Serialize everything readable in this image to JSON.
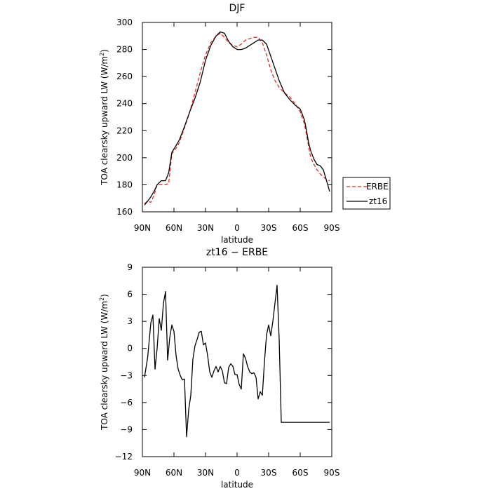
{
  "chart_data": [
    {
      "type": "line",
      "title": "DJF",
      "xlabel": "latitude",
      "ylabel": "TOA clearsky upward LW (W/m²)",
      "xlim": [
        90,
        -90
      ],
      "ylim": [
        160,
        300
      ],
      "x_tick_values": [
        90,
        60,
        30,
        0,
        -30,
        -60,
        -90
      ],
      "x_tick_labels": [
        "90N",
        "60N",
        "30N",
        "0",
        "30S",
        "60S",
        "90S"
      ],
      "y_tick_values": [
        160,
        180,
        200,
        220,
        240,
        260,
        280,
        300
      ],
      "y_tick_labels": [
        "160",
        "180",
        "200",
        "220",
        "240",
        "260",
        "280",
        "300"
      ],
      "legend_placement": "right",
      "series": [
        {
          "name": "ERBE",
          "color": "#e8281e",
          "dashed": true,
          "x": [
            88,
            85,
            82,
            79,
            76,
            72,
            68,
            65,
            62,
            58,
            55,
            50,
            45,
            40,
            35,
            30,
            25,
            20,
            16,
            12,
            8,
            4,
            0,
            -4,
            -8,
            -12,
            -16,
            -20,
            -24,
            -28,
            -32,
            -36,
            -40,
            -45,
            -50,
            -55,
            -60,
            -64,
            -66,
            -68,
            -70,
            -73,
            -76,
            -79,
            -82,
            -85,
            -88
          ],
          "y": [
            166,
            168,
            167,
            172,
            180,
            180,
            180,
            181,
            203,
            207,
            211,
            222,
            234,
            248,
            263,
            276,
            285,
            290,
            292,
            289,
            285,
            283,
            282,
            284,
            287,
            288,
            289,
            289,
            285,
            276,
            265,
            257,
            252,
            248,
            245,
            240,
            234,
            225,
            217,
            208,
            200,
            195,
            191,
            188,
            186,
            184,
            183
          ]
        },
        {
          "name": "zt16",
          "color": "#000000",
          "dashed": false,
          "x": [
            88,
            85,
            82,
            79,
            76,
            72,
            68,
            65,
            62,
            58,
            55,
            50,
            45,
            40,
            35,
            30,
            25,
            20,
            16,
            12,
            8,
            4,
            0,
            -4,
            -8,
            -12,
            -16,
            -20,
            -24,
            -28,
            -32,
            -36,
            -40,
            -45,
            -50,
            -55,
            -60,
            -64,
            -66,
            -68,
            -70,
            -73,
            -76,
            -79,
            -82,
            -85,
            -88
          ],
          "y": [
            165,
            168,
            171,
            175,
            180,
            183,
            183,
            189,
            204,
            209,
            213,
            223,
            234,
            244,
            256,
            272,
            283,
            290,
            293,
            292,
            286,
            282,
            280,
            280,
            281,
            283,
            285,
            287,
            287,
            284,
            275,
            266,
            257,
            248,
            243,
            239,
            236,
            228,
            220,
            211,
            205,
            199,
            195,
            194,
            191,
            183,
            175
          ]
        }
      ]
    },
    {
      "type": "line",
      "title": "zt16 − ERBE",
      "xlabel": "latitude",
      "ylabel": "TOA clearsky upward LW (W/m²)",
      "xlim": [
        90,
        -90
      ],
      "ylim": [
        -12,
        9
      ],
      "x_tick_values": [
        90,
        60,
        30,
        0,
        -30,
        -60,
        -90
      ],
      "x_tick_labels": [
        "90N",
        "60N",
        "30N",
        "0",
        "30S",
        "60S",
        "90S"
      ],
      "y_tick_values": [
        -12,
        -9,
        -6,
        -3,
        0,
        3,
        6,
        9
      ],
      "y_tick_labels": [
        "−12",
        "−9",
        "−6",
        "−3",
        "0",
        "3",
        "6",
        "9"
      ],
      "series": [
        {
          "name": "",
          "color": "#000000",
          "dashed": false,
          "x": [
            88,
            85,
            82,
            80,
            78,
            76,
            74,
            72,
            70,
            68,
            66,
            64,
            62,
            60,
            58,
            56,
            54,
            52,
            50,
            48,
            46,
            44,
            42,
            40,
            38,
            36,
            34,
            32,
            30,
            28,
            26,
            24,
            22,
            20,
            18,
            16,
            14,
            12,
            10,
            8,
            6,
            4,
            2,
            0,
            -2,
            -4,
            -6,
            -8,
            -10,
            -12,
            -14,
            -16,
            -18,
            -20,
            -22,
            -24,
            -26,
            -28,
            -30,
            -32,
            -34,
            -36,
            -38,
            -40,
            -42,
            -44,
            -46,
            -48,
            -50,
            -52,
            -54,
            -56,
            -58,
            -60,
            -62,
            -64,
            -66,
            -68,
            -70,
            -72,
            -74,
            -76,
            -78,
            -80,
            -82,
            -84,
            -86,
            -88
          ],
          "y": [
            -3.2,
            -1.0,
            2.8,
            3.7,
            -2.3,
            0.0,
            3.3,
            2.0,
            5.0,
            6.3,
            -1.3,
            1.2,
            2.6,
            1.9,
            -0.8,
            -2.3,
            -3.0,
            -3.5,
            -3.4,
            -9.8,
            -6.8,
            -5.2,
            -1.2,
            0.3,
            1.0,
            1.8,
            1.9,
            0.4,
            0.6,
            -0.8,
            -2.6,
            -3.2,
            -2.5,
            -2.0,
            -2.6,
            -2.0,
            -2.5,
            -3.8,
            -3.9,
            -2.1,
            -1.7,
            -2.0,
            -2.9,
            -2.9,
            -4.0,
            -4.5,
            -0.6,
            -1.1,
            -2.0,
            -2.6,
            -2.8,
            -2.7,
            -3.2,
            -5.6,
            -4.8,
            -5.2,
            -1.5,
            1.5,
            2.6,
            1.4,
            3.0,
            5.0,
            7.0,
            1.0,
            -8.2,
            -8.2,
            -8.2,
            -8.2,
            -8.2,
            -8.2,
            -8.2,
            -8.2,
            -8.2,
            -8.2,
            -8.2,
            -8.2,
            -8.2,
            -8.2,
            -8.2,
            -8.2,
            -8.2,
            -8.2,
            -8.2,
            -8.2,
            -8.2,
            -8.2,
            -8.2,
            -8.2
          ]
        }
      ]
    }
  ]
}
